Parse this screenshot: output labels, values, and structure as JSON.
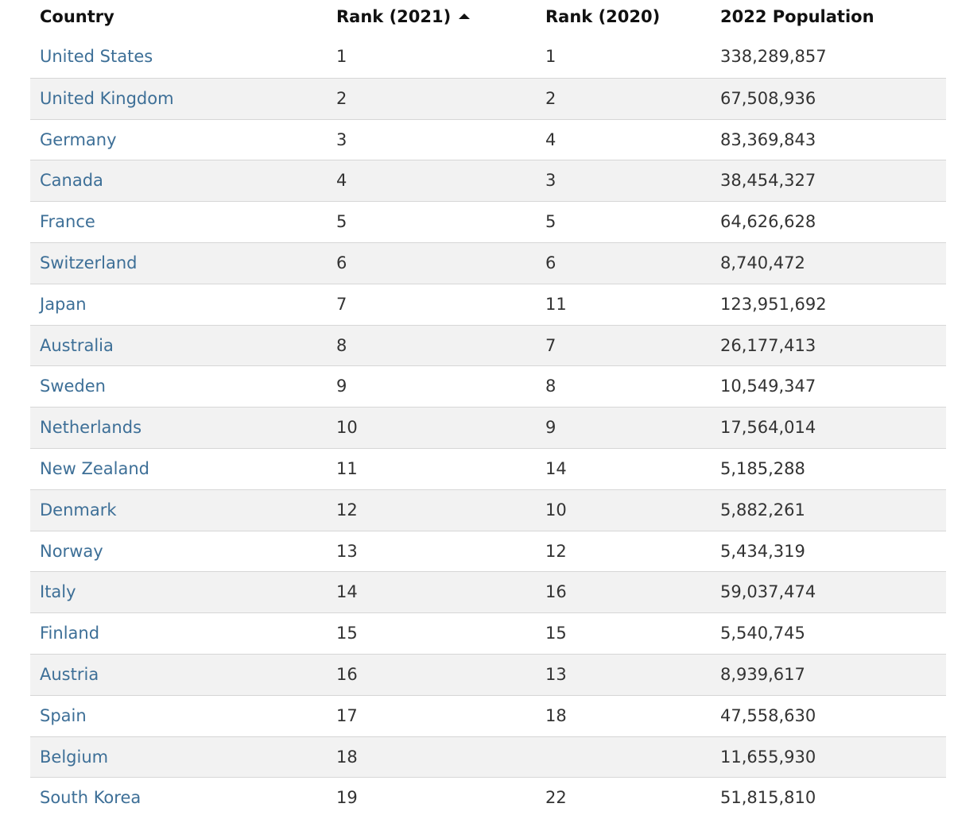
{
  "table": {
    "header": [
      "Country",
      "Rank (2021)",
      "Rank (2020)",
      "2022 Population"
    ],
    "rows": [
      [
        "United States",
        1,
        1,
        "338,289,857"
      ],
      [
        "United Kingdom",
        2,
        2,
        "67,508,936"
      ],
      [
        "Germany",
        3,
        4,
        "83,369,843"
      ],
      [
        "Canada",
        4,
        3,
        "38,454,327"
      ],
      [
        "France",
        5,
        5,
        "64,626,628"
      ],
      [
        "Switzerland",
        6,
        6,
        "8,740,472"
      ],
      [
        "Japan",
        7,
        11,
        "123,951,692"
      ],
      [
        "Australia",
        8,
        7,
        "26,177,413"
      ],
      [
        "Sweden",
        9,
        8,
        "10,549,347"
      ],
      [
        "Netherlands",
        10,
        9,
        "17,564,014"
      ],
      [
        "New Zealand",
        11,
        14,
        "5,185,288"
      ],
      [
        "Denmark",
        12,
        10,
        "5,882,261"
      ],
      [
        "Norway",
        13,
        12,
        "5,434,319"
      ],
      [
        "Italy",
        14,
        16,
        "59,037,474"
      ],
      [
        "Finland",
        15,
        15,
        "5,540,745"
      ],
      [
        "Austria",
        16,
        13,
        "8,939,617"
      ],
      [
        "Spain",
        17,
        18,
        "47,558,630"
      ],
      [
        "Belgium",
        18,
        null,
        "11,655,930"
      ],
      [
        "South Korea",
        19,
        22,
        "51,815,810"
      ]
    ]
  }
}
